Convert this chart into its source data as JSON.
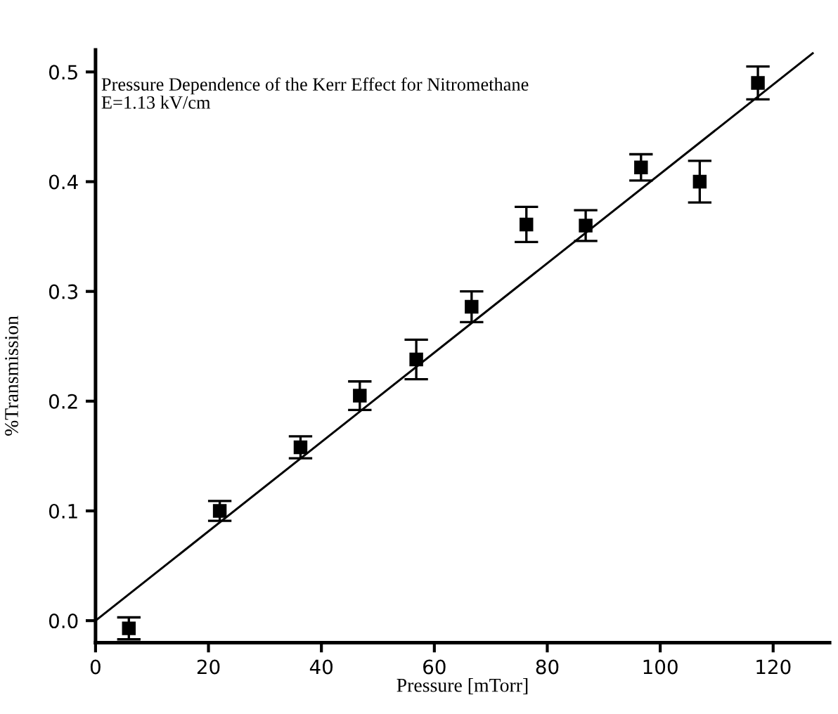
{
  "chart_data": {
    "type": "scatter",
    "title": "Pressure Dependence of the Kerr Effect for Nitromethane",
    "subtitle": "E=1.13 kV/cm",
    "xlabel": "Pressure [mTorr]",
    "ylabel": "%Transmission",
    "xlim": [
      0,
      130
    ],
    "ylim": [
      -0.02,
      0.52
    ],
    "xticks": [
      0,
      20,
      40,
      60,
      80,
      100,
      120
    ],
    "yticks": [
      {
        "value": 0,
        "label": "0.0"
      },
      0.1,
      0.2,
      0.3,
      0.4,
      0.5
    ],
    "grid": false,
    "legend": false,
    "series": [
      {
        "marker": "square",
        "color": "#000000",
        "x": [
          5.9,
          22,
          36.3,
          46.8,
          56.8,
          66.6,
          76.3,
          86.8,
          96.6,
          107,
          117.3
        ],
        "values": [
          -0.007,
          0.1,
          0.158,
          0.205,
          0.238,
          0.286,
          0.361,
          0.36,
          0.413,
          0.4,
          0.49
        ],
        "errors": [
          0.01,
          0.009,
          0.01,
          0.013,
          0.018,
          0.014,
          0.016,
          0.014,
          0.012,
          0.019,
          0.015
        ]
      },
      {
        "type": "line",
        "marker": "none",
        "color": "#000000",
        "x": [
          0,
          127
        ],
        "values": [
          0,
          0.517
        ]
      }
    ]
  }
}
